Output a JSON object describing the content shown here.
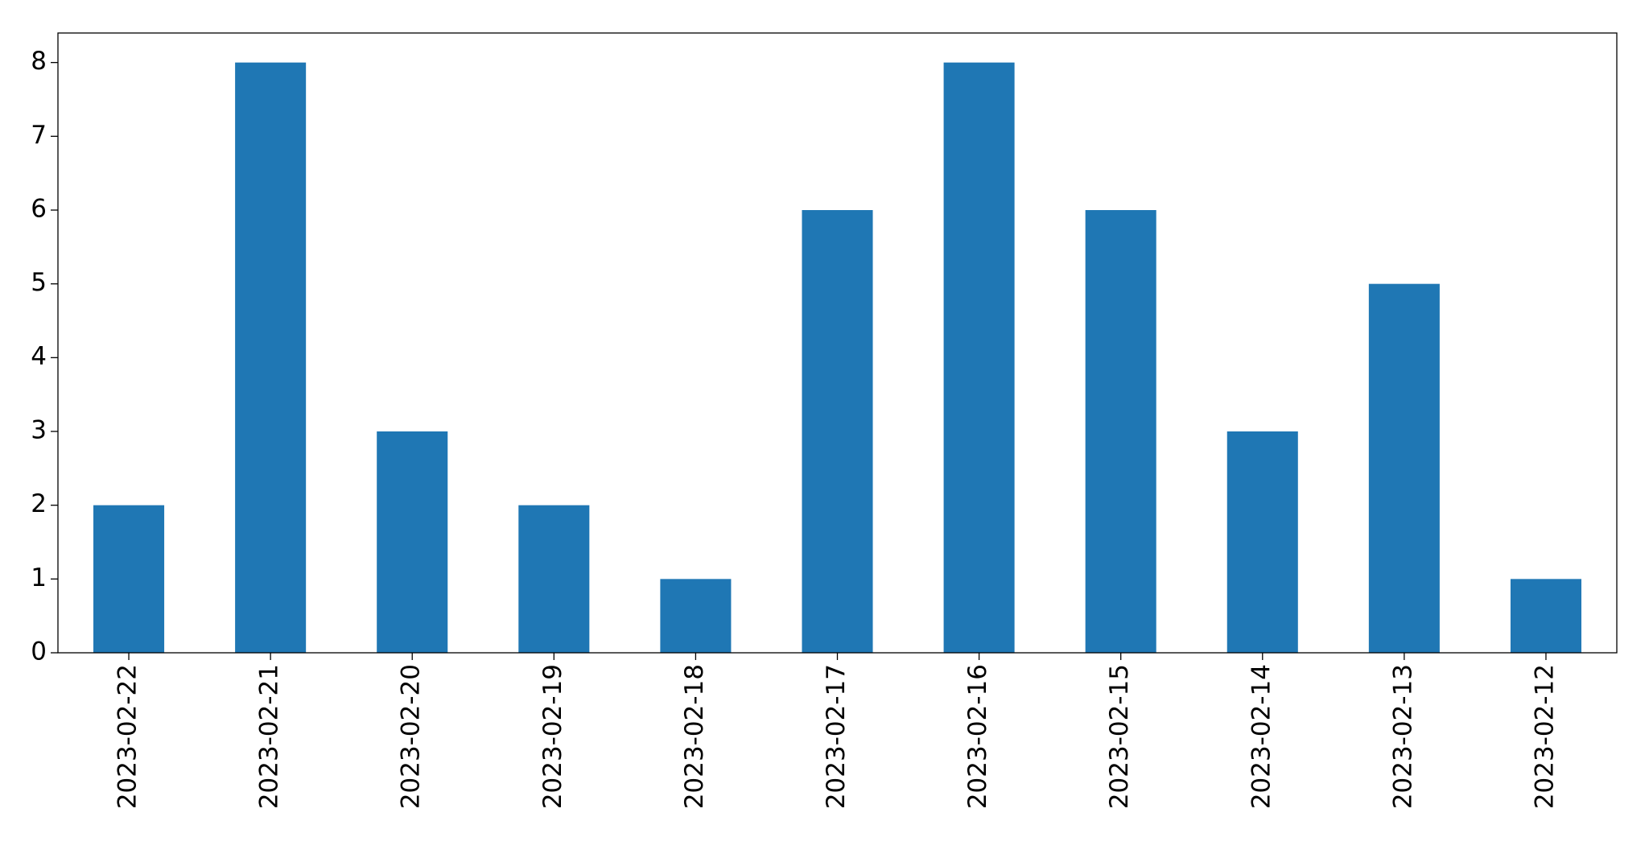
{
  "chart_data": {
    "type": "bar",
    "categories": [
      "2023-02-22",
      "2023-02-21",
      "2023-02-20",
      "2023-02-19",
      "2023-02-18",
      "2023-02-17",
      "2023-02-16",
      "2023-02-15",
      "2023-02-14",
      "2023-02-13",
      "2023-02-12"
    ],
    "values": [
      2,
      8,
      3,
      2,
      1,
      6,
      8,
      6,
      3,
      5,
      1
    ],
    "color": "#1f77b4",
    "ylim": [
      0,
      8.4
    ],
    "yticks": [
      0,
      1,
      2,
      3,
      4,
      5,
      6,
      7,
      8
    ],
    "grid": false
  }
}
